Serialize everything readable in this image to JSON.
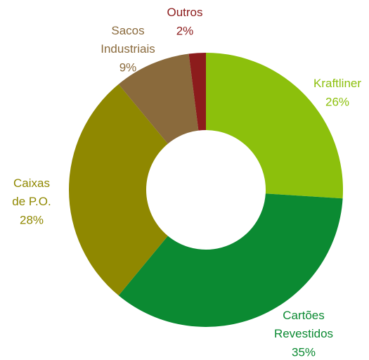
{
  "chart_data": {
    "type": "donut",
    "categories": [
      "Kraftliner",
      "Cartões Revestidos",
      "Caixas de P.O.",
      "Sacos Industriais",
      "Outros"
    ],
    "values": [
      26,
      35,
      28,
      9,
      2
    ],
    "value_labels": [
      "26%",
      "35%",
      "28%",
      "9%",
      "2%"
    ],
    "colors": [
      "#8cc00c",
      "#0b8a32",
      "#8f8800",
      "#8a6a3c",
      "#8c1c1c"
    ]
  }
}
